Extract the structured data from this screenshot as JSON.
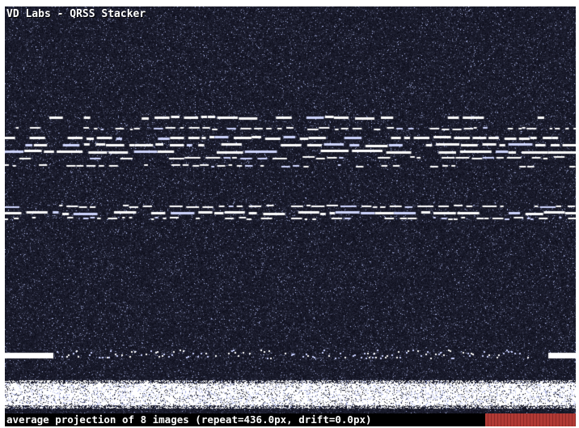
{
  "window": {
    "title": "VD Labs - QRSS Stacker"
  },
  "status": {
    "text": "average projection of 8 images (repeat=436.0px, drift=0.0px)"
  },
  "colors": {
    "background": "#191c31",
    "signal": "#ffffff",
    "status_bar": "#000000",
    "status_accent": "#b13a35"
  }
}
